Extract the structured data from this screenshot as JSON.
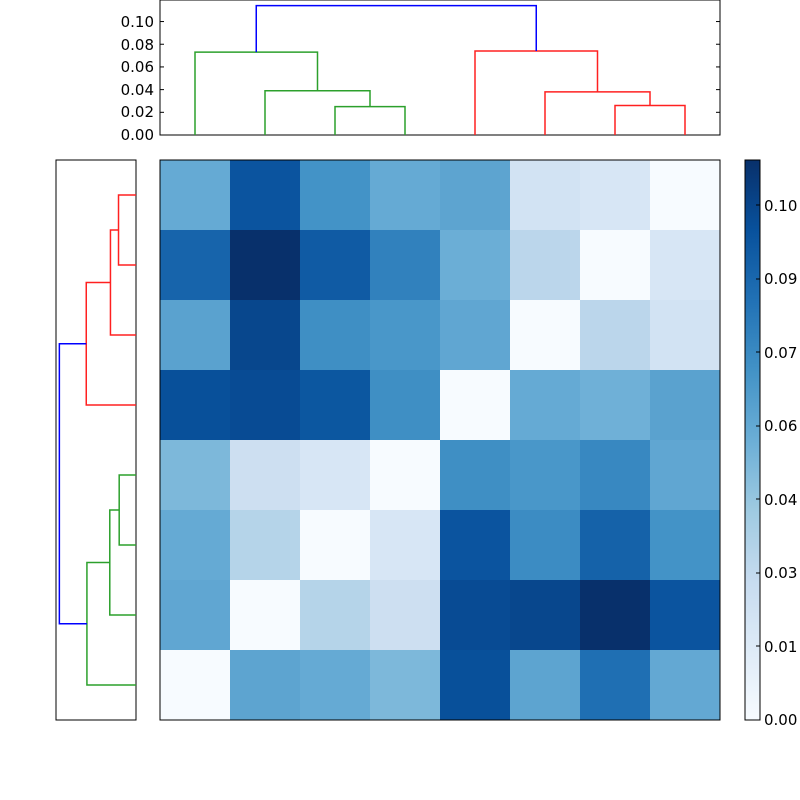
{
  "chart_data": {
    "type": "heatmap",
    "title": "",
    "description": "Clustered heatmap (distance matrix) with top and left dendrograms and a Blues colorbar",
    "matrix": [
      [
        0.06,
        0.1,
        0.072,
        0.06,
        0.063,
        0.022,
        0.019,
        0.0
      ],
      [
        0.093,
        0.116,
        0.097,
        0.08,
        0.058,
        0.033,
        0.0,
        0.019
      ],
      [
        0.064,
        0.106,
        0.074,
        0.07,
        0.062,
        0.0,
        0.033,
        0.022
      ],
      [
        0.102,
        0.104,
        0.099,
        0.074,
        0.0,
        0.06,
        0.057,
        0.064
      ],
      [
        0.053,
        0.025,
        0.019,
        0.0,
        0.074,
        0.07,
        0.077,
        0.062
      ],
      [
        0.06,
        0.035,
        0.0,
        0.019,
        0.1,
        0.075,
        0.094,
        0.072
      ],
      [
        0.062,
        0.0,
        0.035,
        0.025,
        0.104,
        0.106,
        0.116,
        0.1
      ],
      [
        0.0,
        0.063,
        0.06,
        0.053,
        0.102,
        0.063,
        0.088,
        0.061
      ]
    ],
    "colormap": "Blues",
    "colorbar": {
      "ticks": [
        "0.00",
        "0.01",
        "0.03",
        "0.04",
        "0.06",
        "0.07",
        "0.09",
        "0.10"
      ],
      "vmin": 0.0,
      "vmax": 0.116
    },
    "top_dendrogram": {
      "yticks": [
        "0.00",
        "0.02",
        "0.04",
        "0.06",
        "0.08",
        "0.10"
      ],
      "ylim": [
        0.0,
        0.119
      ],
      "links": [
        {
          "left": 2,
          "right": 3,
          "height": 0.025,
          "color": "green"
        },
        {
          "left": 1,
          "right": "2-3",
          "height": 0.039,
          "color": "green"
        },
        {
          "left": 0,
          "right": "1-3",
          "height": 0.073,
          "color": "green"
        },
        {
          "left": 6,
          "right": 7,
          "height": 0.026,
          "color": "red"
        },
        {
          "left": 5,
          "right": "6-7",
          "height": 0.038,
          "color": "red"
        },
        {
          "left": 4,
          "right": "5-7",
          "height": 0.074,
          "color": "red"
        },
        {
          "left": "0-3",
          "right": "4-7",
          "height": 0.114,
          "color": "blue"
        }
      ]
    },
    "left_dendrogram": {
      "orientation": "left",
      "links": [
        {
          "rows": [
            0,
            1
          ],
          "height": 0.026,
          "color": "red"
        },
        {
          "rows": [
            2,
            "0-1"
          ],
          "height": 0.038,
          "color": "red"
        },
        {
          "rows": [
            3,
            "0-2"
          ],
          "height": 0.074,
          "color": "red"
        },
        {
          "rows": [
            4,
            5
          ],
          "height": 0.025,
          "color": "green"
        },
        {
          "rows": [
            6,
            "4-5"
          ],
          "height": 0.039,
          "color": "green"
        },
        {
          "rows": [
            7,
            "4-6"
          ],
          "height": 0.073,
          "color": "green"
        },
        {
          "rows": [
            "0-3",
            "4-7"
          ],
          "height": 0.114,
          "color": "blue"
        }
      ]
    },
    "link_colors": {
      "green": "#2ca02c",
      "red": "#ff2020",
      "blue": "#0000ff"
    }
  },
  "labels": {
    "top_yticks": [
      "0.00",
      "0.02",
      "0.04",
      "0.06",
      "0.08",
      "0.10"
    ],
    "colorbar_ticks": [
      "0.10",
      "0.09",
      "0.07",
      "0.06",
      "0.04",
      "0.03",
      "0.01",
      "0.00"
    ]
  }
}
